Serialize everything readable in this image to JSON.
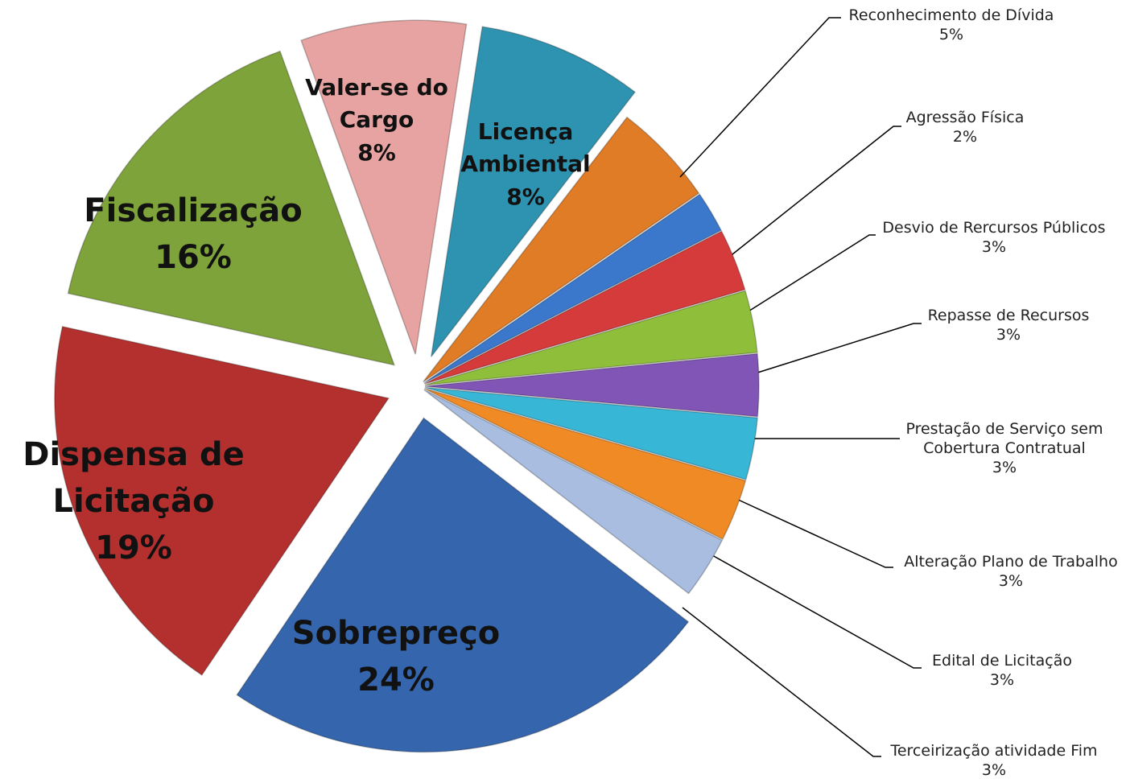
{
  "chart_data": {
    "type": "pie",
    "categories": [
      "Valer-se do Cargo",
      "Licença Ambiental",
      "Reconhecimento de Dívida",
      "Agressão Física",
      "Desvio de Rercursos Públicos",
      "Repasse de Recursos",
      "Prestação de Serviço sem Cobertura Contratual",
      "Alteração Plano de Trabalho",
      "Edital de Licitação",
      "Terceirização atividade Fim",
      "Sobrepreço",
      "Dispensa de Licitação",
      "Fiscalização"
    ],
    "values": [
      8,
      8,
      5,
      2,
      3,
      3,
      3,
      3,
      3,
      3,
      24,
      19,
      16
    ],
    "value_labels": [
      "8%",
      "8%",
      "5%",
      "2%",
      "3%",
      "3%",
      "3%",
      "3%",
      "3%",
      "3%",
      "24%",
      "19%",
      "16%"
    ],
    "colors": [
      "#e6a3a1",
      "#2e93b0",
      "#e07b26",
      "#3b78cc",
      "#d63b3b",
      "#8fbf3a",
      "#8155b5",
      "#37b6d6",
      "#f08a24",
      "#a8bde0",
      "#3465ad",
      "#b3302e",
      "#7ea33a"
    ]
  }
}
